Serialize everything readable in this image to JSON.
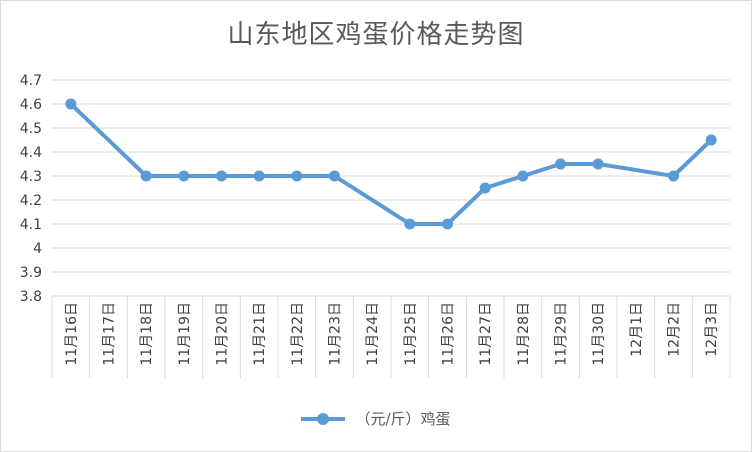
{
  "chart_data": {
    "type": "line",
    "title": "山东地区鸡蛋价格走势图",
    "categories": [
      "11月16日",
      "11月17日",
      "11月18日",
      "11月19日",
      "11月20日",
      "11月21日",
      "11月22日",
      "11月23日",
      "11月24日",
      "11月25日",
      "11月26日",
      "11月27日",
      "11月28日",
      "11月29日",
      "11月30日",
      "12月1日",
      "12月2日",
      "12月3日"
    ],
    "series": [
      {
        "name": "（元/斤）鸡蛋",
        "color": "#5b9bd5",
        "points": [
          {
            "x": "11月16日",
            "y": 4.6
          },
          {
            "x": "11月18日",
            "y": 4.3
          },
          {
            "x": "11月19日",
            "y": 4.3
          },
          {
            "x": "11月20日",
            "y": 4.3
          },
          {
            "x": "11月21日",
            "y": 4.3
          },
          {
            "x": "11月22日",
            "y": 4.3
          },
          {
            "x": "11月23日",
            "y": 4.3
          },
          {
            "x": "11月25日",
            "y": 4.1
          },
          {
            "x": "11月26日",
            "y": 4.1
          },
          {
            "x": "11月27日",
            "y": 4.25
          },
          {
            "x": "11月28日",
            "y": 4.3
          },
          {
            "x": "11月29日",
            "y": 4.35
          },
          {
            "x": "11月30日",
            "y": 4.35
          },
          {
            "x": "12月2日",
            "y": 4.3
          },
          {
            "x": "12月3日",
            "y": 4.45
          }
        ]
      }
    ],
    "yticks": [
      "3.8",
      "3.9",
      "4",
      "4.1",
      "4.2",
      "4.3",
      "4.4",
      "4.5",
      "4.6",
      "4.7"
    ],
    "ylim": [
      3.8,
      4.7
    ],
    "grid": true,
    "legend": "bottom",
    "gridColor": "#d9d9d9"
  }
}
